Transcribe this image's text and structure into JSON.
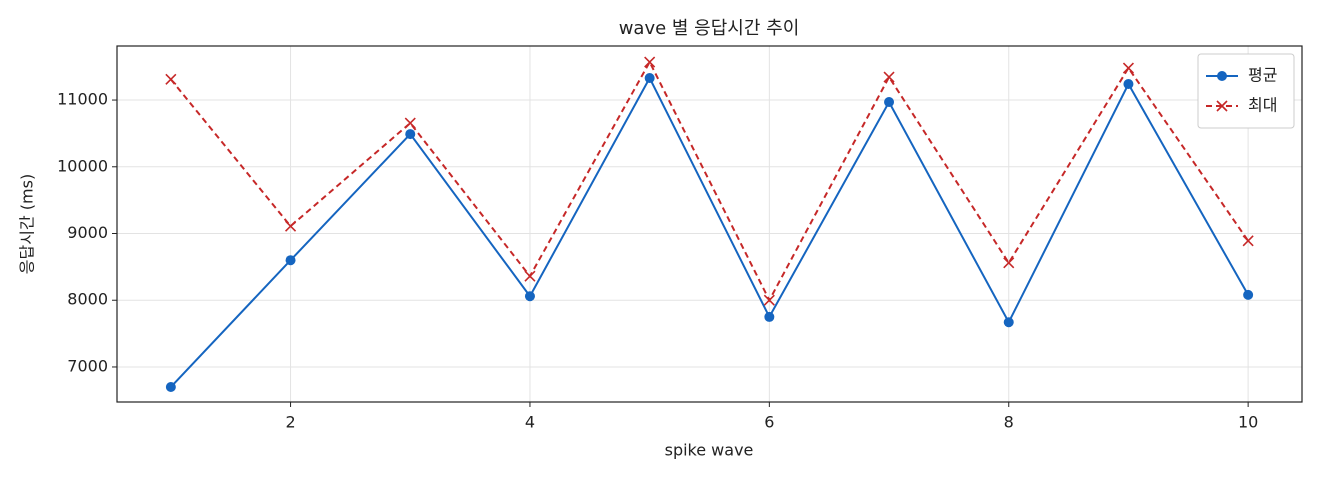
{
  "chart_data": {
    "type": "line",
    "title": "wave 별 응답시간 추이",
    "x_label": "spike wave",
    "y_label": "응답시간 (ms)",
    "x": [
      1,
      2,
      3,
      4,
      5,
      6,
      7,
      8,
      9,
      10
    ],
    "series": [
      {
        "name": "평균",
        "color": "#1565c0",
        "marker": "circle",
        "dash": false,
        "values": [
          6700,
          8600,
          10490,
          8060,
          11330,
          7750,
          10970,
          7670,
          11240,
          8080
        ]
      },
      {
        "name": "최대",
        "color": "#c62828",
        "marker": "x",
        "dash": true,
        "values": [
          11310,
          9110,
          10655,
          8360,
          11570,
          8000,
          11345,
          8560,
          11480,
          8890
        ]
      }
    ],
    "xlim": [
      0.55,
      10.45
    ],
    "xticks": [
      2,
      4,
      6,
      8,
      10
    ],
    "ylim": [
      6475,
      11810
    ],
    "yticks": [
      7000,
      8000,
      9000,
      10000,
      11000
    ],
    "grid": true,
    "legend": "upper right"
  }
}
